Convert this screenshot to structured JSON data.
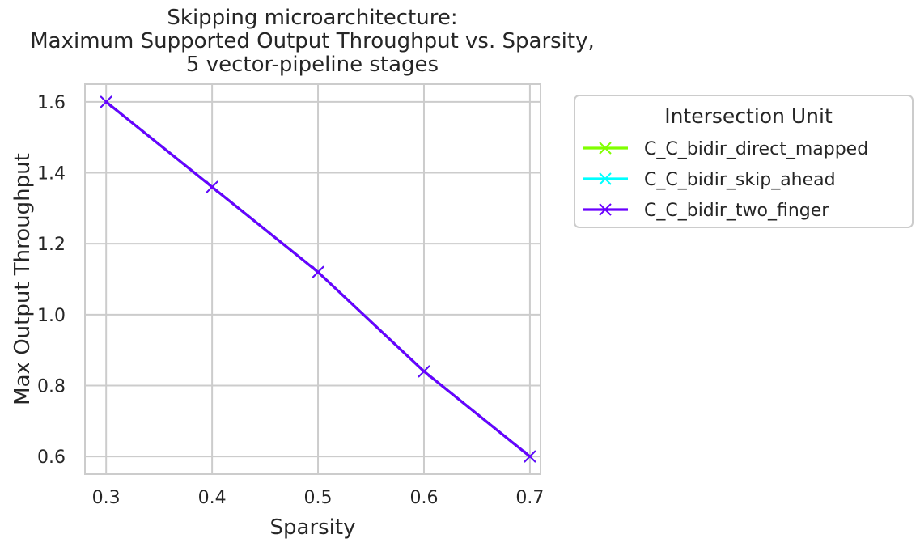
{
  "chart_data": {
    "type": "line",
    "title": "Skipping microarchitecture:\nMaximum Supported Output Throughput vs. Sparsity,\n5 vector-pipeline stages",
    "xlabel": "Sparsity",
    "ylabel": "Max Output Throughput",
    "x": [
      0.3,
      0.4,
      0.5,
      0.6,
      0.7
    ],
    "xticks": [
      "0.3",
      "0.4",
      "0.5",
      "0.6",
      "0.7"
    ],
    "yticks": [
      "0.6",
      "0.8",
      "1.0",
      "1.2",
      "1.4",
      "1.6"
    ],
    "xlim": [
      0.28,
      0.71
    ],
    "ylim": [
      0.55,
      1.65
    ],
    "grid": true,
    "marker": "x",
    "legend": {
      "title": "Intersection Unit",
      "placement": "outside-upper-right"
    },
    "series": [
      {
        "name": "C_C_bidir_direct_mapped",
        "color": "#80ff00",
        "values": [
          1.6,
          1.36,
          1.12,
          0.84,
          0.6
        ]
      },
      {
        "name": "C_C_bidir_skip_ahead",
        "color": "#00ffff",
        "values": [
          1.6,
          1.36,
          1.12,
          0.84,
          0.6
        ]
      },
      {
        "name": "C_C_bidir_two_finger",
        "color": "#6a00ff",
        "values": [
          1.6,
          1.36,
          1.12,
          0.84,
          0.6
        ]
      }
    ]
  }
}
